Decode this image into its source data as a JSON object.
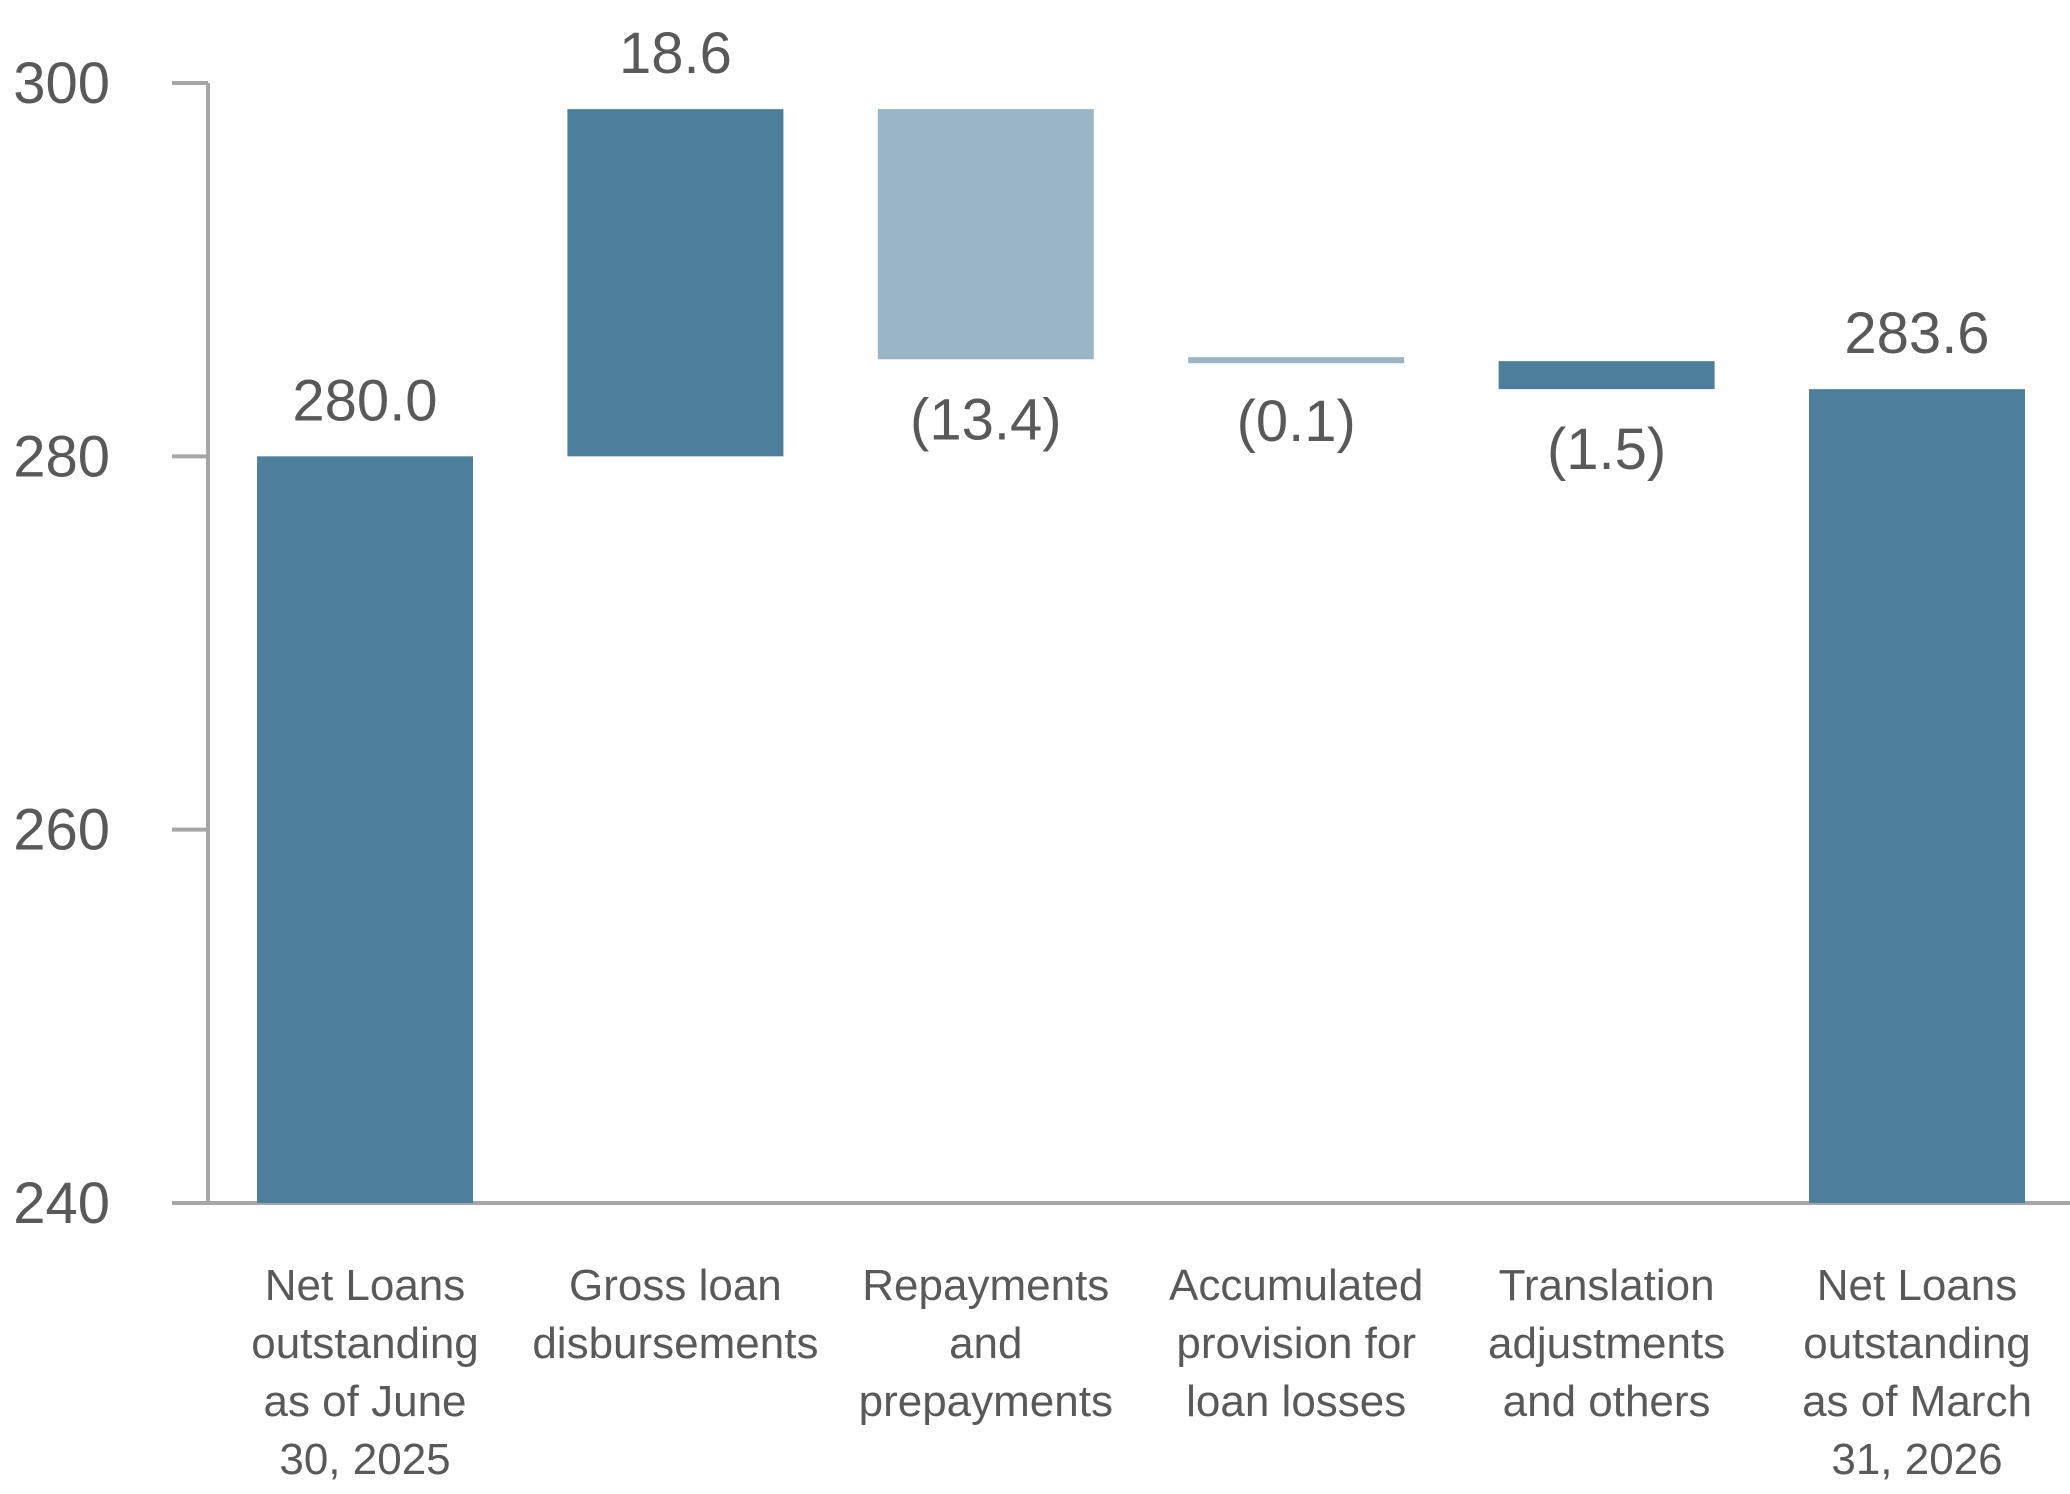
{
  "chart_data": {
    "type": "bar",
    "subtype": "waterfall",
    "categories": [
      [
        "Net Loans",
        "outstanding",
        "as of June",
        "30, 2025"
      ],
      [
        "Gross loan",
        "disbursements"
      ],
      [
        "Repayments",
        "and",
        "prepayments"
      ],
      [
        "Accumulated",
        "provision for",
        "loan losses"
      ],
      [
        "Translation",
        "adjustments",
        "and others"
      ],
      [
        "Net Loans",
        "outstanding",
        "as of March",
        "31, 2026"
      ]
    ],
    "values": [
      280.0,
      18.6,
      -13.4,
      -0.1,
      -1.5,
      283.6
    ],
    "kinds": [
      "total",
      "increase",
      "decrease",
      "decrease",
      "decrease",
      "total"
    ],
    "value_labels": [
      "280.0",
      "18.6",
      "(13.4)",
      "(0.1)",
      "(1.5)",
      "283.6"
    ],
    "ylim": [
      240,
      300
    ],
    "yticks": [
      240,
      260,
      280,
      300
    ],
    "ytick_labels": [
      "240",
      "260",
      "280",
      "300"
    ],
    "colors": {
      "total": "#4d7f9c",
      "increase": "#4d7f9c",
      "repayments": "#9ab5c6",
      "provision": "#9ab5c6",
      "translation": "#4d7f9c",
      "axis": "#a6a6a6",
      "text": "#595959"
    },
    "bar_colors": [
      "#4d7f9c",
      "#4d7f9c",
      "#9ab5c6",
      "#9ab5c6",
      "#4d7f9c",
      "#4d7f9c"
    ],
    "xlabel": "",
    "ylabel": "",
    "grid": false,
    "legend": "none"
  }
}
